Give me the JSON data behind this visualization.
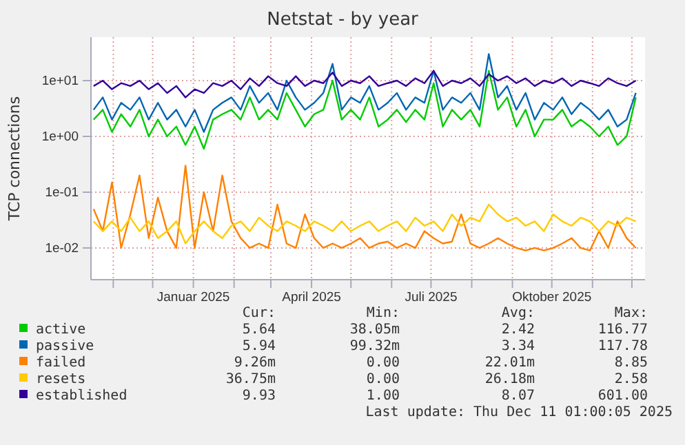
{
  "chart_data": {
    "type": "line",
    "title": "Netstat - by year",
    "ylabel": "TCP connections",
    "log": "y",
    "grid": true,
    "legend": "bottom",
    "marker": "none",
    "line_style": "solid",
    "ylim": [
      0.0027,
      60
    ],
    "yticks": [
      {
        "value": 0.01,
        "label": "1e-02"
      },
      {
        "value": 0.1,
        "label": "1e-01"
      },
      {
        "value": 1,
        "label": "1e+00"
      },
      {
        "value": 10,
        "label": "1e+01"
      }
    ],
    "xlim": [
      "2024-10-15",
      "2025-12-11"
    ],
    "xticks": [
      {
        "value": "2024-11-01",
        "label": null
      },
      {
        "value": "2024-12-01",
        "label": null
      },
      {
        "value": "2025-01-01",
        "label": "Januar 2025"
      },
      {
        "value": "2025-02-01",
        "label": null
      },
      {
        "value": "2025-03-01",
        "label": null
      },
      {
        "value": "2025-04-01",
        "label": "April 2025"
      },
      {
        "value": "2025-05-01",
        "label": null
      },
      {
        "value": "2025-06-01",
        "label": null
      },
      {
        "value": "2025-07-01",
        "label": "Juli 2025"
      },
      {
        "value": "2025-08-01",
        "label": null
      },
      {
        "value": "2025-09-01",
        "label": null
      },
      {
        "value": "2025-10-01",
        "label": "Oktober 2025"
      },
      {
        "value": "2025-11-01",
        "label": null
      },
      {
        "value": "2025-12-01",
        "label": null
      }
    ],
    "x": [
      "2024-10-17",
      "2024-10-24",
      "2024-10-31",
      "2024-11-07",
      "2024-11-14",
      "2024-11-21",
      "2024-11-28",
      "2024-12-05",
      "2024-12-12",
      "2024-12-19",
      "2024-12-26",
      "2025-01-02",
      "2025-01-09",
      "2025-01-16",
      "2025-01-23",
      "2025-01-30",
      "2025-02-06",
      "2025-02-13",
      "2025-02-20",
      "2025-02-27",
      "2025-03-06",
      "2025-03-13",
      "2025-03-20",
      "2025-03-27",
      "2025-04-03",
      "2025-04-10",
      "2025-04-17",
      "2025-04-24",
      "2025-05-01",
      "2025-05-08",
      "2025-05-15",
      "2025-05-22",
      "2025-05-29",
      "2025-06-05",
      "2025-06-12",
      "2025-06-19",
      "2025-06-26",
      "2025-07-03",
      "2025-07-10",
      "2025-07-17",
      "2025-07-24",
      "2025-07-31",
      "2025-08-07",
      "2025-08-14",
      "2025-08-21",
      "2025-08-28",
      "2025-09-04",
      "2025-09-11",
      "2025-09-18",
      "2025-09-25",
      "2025-10-02",
      "2025-10-09",
      "2025-10-16",
      "2025-10-23",
      "2025-10-30",
      "2025-11-06",
      "2025-11-13",
      "2025-11-20",
      "2025-11-27",
      "2025-12-04"
    ],
    "series": [
      {
        "name": "active",
        "color": "#00cc00",
        "values": [
          2,
          3,
          1.2,
          2.5,
          1.5,
          3,
          1,
          2,
          1,
          1.5,
          0.7,
          1.5,
          0.6,
          2,
          2.5,
          3,
          2,
          5,
          2,
          3,
          2,
          6,
          3,
          1.5,
          2.5,
          3,
          10,
          2,
          3,
          2,
          5,
          1.5,
          2,
          3,
          1.8,
          3,
          2,
          9,
          1.5,
          3,
          2,
          3,
          1.5,
          15,
          3,
          5,
          1.5,
          3,
          1,
          2,
          2,
          3,
          1.5,
          2,
          1.5,
          1,
          1.5,
          0.7,
          1,
          5
        ]
      },
      {
        "name": "passive",
        "color": "#0066b3",
        "values": [
          3,
          5,
          2,
          4,
          3,
          5,
          2,
          4,
          2,
          3,
          1.5,
          3,
          1.2,
          3,
          4,
          5,
          3,
          8,
          4,
          6,
          3,
          10,
          5,
          3,
          4,
          6,
          20,
          3,
          5,
          4,
          8,
          3,
          4,
          6,
          3,
          5,
          4,
          15,
          3,
          5,
          4,
          6,
          3,
          30,
          5,
          8,
          3,
          6,
          2,
          4,
          3,
          5,
          2.5,
          4,
          3,
          2,
          3,
          1.5,
          2,
          6
        ]
      },
      {
        "name": "failed",
        "color": "#ff8000",
        "values": [
          0.05,
          0.02,
          0.15,
          0.01,
          0.04,
          0.2,
          0.015,
          0.08,
          0.02,
          0.01,
          0.3,
          0.01,
          0.1,
          0.02,
          0.2,
          0.03,
          0.015,
          0.01,
          0.012,
          0.01,
          0.06,
          0.012,
          0.01,
          0.04,
          0.015,
          0.01,
          0.012,
          0.01,
          0.012,
          0.015,
          0.01,
          0.012,
          0.013,
          0.01,
          0.012,
          0.01,
          0.02,
          0.015,
          0.012,
          0.013,
          0.04,
          0.012,
          0.01,
          0.012,
          0.015,
          0.012,
          0.01,
          0.009,
          0.01,
          0.009,
          0.01,
          0.012,
          0.015,
          0.01,
          0.009,
          0.02,
          0.01,
          0.03,
          0.015,
          0.01
        ]
      },
      {
        "name": "resets",
        "color": "#ffcc00",
        "values": [
          0.03,
          0.02,
          0.03,
          0.02,
          0.035,
          0.02,
          0.03,
          0.015,
          0.02,
          0.03,
          0.012,
          0.02,
          0.03,
          0.02,
          0.015,
          0.025,
          0.03,
          0.02,
          0.035,
          0.025,
          0.02,
          0.03,
          0.025,
          0.02,
          0.03,
          0.025,
          0.02,
          0.03,
          0.02,
          0.025,
          0.03,
          0.02,
          0.025,
          0.03,
          0.02,
          0.035,
          0.025,
          0.03,
          0.02,
          0.04,
          0.025,
          0.035,
          0.03,
          0.06,
          0.04,
          0.03,
          0.035,
          0.025,
          0.03,
          0.02,
          0.04,
          0.03,
          0.025,
          0.035,
          0.03,
          0.02,
          0.03,
          0.025,
          0.035,
          0.03
        ]
      },
      {
        "name": "established",
        "color": "#330099",
        "values": [
          8,
          10,
          7,
          9,
          8,
          10,
          7,
          9,
          6,
          8,
          5,
          7,
          6,
          9,
          8,
          10,
          7,
          11,
          8,
          12,
          9,
          8,
          12,
          8,
          10,
          9,
          14,
          8,
          10,
          9,
          12,
          8,
          9,
          10,
          8,
          11,
          9,
          15,
          8,
          10,
          9,
          11,
          8,
          13,
          10,
          12,
          9,
          11,
          8,
          10,
          9,
          11,
          8,
          10,
          9,
          8,
          11,
          9,
          8,
          10
        ]
      }
    ],
    "annotations": [
      "Cur:",
      "Min:",
      "Avg:",
      "Max:",
      "5.64",
      "38.05m",
      "2.42",
      "116.77",
      "5.94",
      "99.32m",
      "3.34",
      "117.78",
      "9.26m",
      "0.00",
      "22.01m",
      "8.85",
      "36.75m",
      "0.00",
      "26.18m",
      "2.58",
      "9.93",
      "1.00",
      "8.07",
      "601.00",
      "Last update: Thu Dec 11 01:00:05 2025"
    ]
  }
}
